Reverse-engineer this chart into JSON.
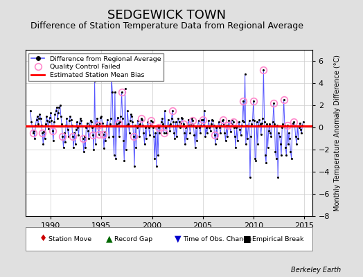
{
  "title": "SEDGEWICK TOWN",
  "subtitle": "Difference of Station Temperature Data from Regional Average",
  "ylabel": "Monthly Temperature Anomaly Difference (°C)",
  "credit": "Berkeley Earth",
  "xlim": [
    1987.5,
    2015.8
  ],
  "ylim": [
    -8,
    7
  ],
  "yticks": [
    -8,
    -6,
    -4,
    -2,
    0,
    2,
    4,
    6
  ],
  "xticks": [
    1990,
    1995,
    2000,
    2005,
    2010,
    2015
  ],
  "bias_line_y": 0.15,
  "background_color": "#e0e0e0",
  "plot_bg_color": "#ffffff",
  "line_color": "#5555ff",
  "dot_color": "#000000",
  "qc_color": "#ff88cc",
  "bias_color": "#ff0000",
  "title_fontsize": 13,
  "subtitle_fontsize": 9,
  "data_x": [
    1988.0,
    1988.083,
    1988.167,
    1988.25,
    1988.333,
    1988.417,
    1988.5,
    1988.583,
    1988.667,
    1988.75,
    1988.833,
    1988.917,
    1989.0,
    1989.083,
    1989.167,
    1989.25,
    1989.333,
    1989.417,
    1989.5,
    1989.583,
    1989.667,
    1989.75,
    1989.833,
    1989.917,
    1990.0,
    1990.083,
    1990.167,
    1990.25,
    1990.333,
    1990.417,
    1990.5,
    1990.583,
    1990.667,
    1990.75,
    1990.833,
    1990.917,
    1991.0,
    1991.083,
    1991.167,
    1991.25,
    1991.333,
    1991.417,
    1991.5,
    1991.583,
    1991.667,
    1991.75,
    1991.833,
    1991.917,
    1992.0,
    1992.083,
    1992.167,
    1992.25,
    1992.333,
    1992.417,
    1992.5,
    1992.583,
    1992.667,
    1992.75,
    1992.833,
    1992.917,
    1993.0,
    1993.083,
    1993.167,
    1993.25,
    1993.333,
    1993.417,
    1993.5,
    1993.583,
    1993.667,
    1993.75,
    1993.833,
    1993.917,
    1994.0,
    1994.083,
    1994.167,
    1994.25,
    1994.333,
    1994.417,
    1994.5,
    1994.583,
    1994.667,
    1994.75,
    1994.833,
    1994.917,
    1995.0,
    1995.083,
    1995.167,
    1995.25,
    1995.333,
    1995.417,
    1995.5,
    1995.583,
    1995.667,
    1995.75,
    1995.833,
    1995.917,
    1996.0,
    1996.083,
    1996.167,
    1996.25,
    1996.333,
    1996.417,
    1996.5,
    1996.583,
    1996.667,
    1996.75,
    1996.833,
    1996.917,
    1997.0,
    1997.083,
    1997.167,
    1997.25,
    1997.333,
    1997.417,
    1997.5,
    1997.583,
    1997.667,
    1997.75,
    1997.833,
    1997.917,
    1998.0,
    1998.083,
    1998.167,
    1998.25,
    1998.333,
    1998.417,
    1998.5,
    1998.583,
    1998.667,
    1998.75,
    1998.833,
    1998.917,
    1999.0,
    1999.083,
    1999.167,
    1999.25,
    1999.333,
    1999.417,
    1999.5,
    1999.583,
    1999.667,
    1999.75,
    1999.833,
    1999.917,
    2000.0,
    2000.083,
    2000.167,
    2000.25,
    2000.333,
    2000.417,
    2000.5,
    2000.583,
    2000.667,
    2000.75,
    2000.833,
    2000.917,
    2001.0,
    2001.083,
    2001.167,
    2001.25,
    2001.333,
    2001.417,
    2001.5,
    2001.583,
    2001.667,
    2001.75,
    2001.833,
    2001.917,
    2002.0,
    2002.083,
    2002.167,
    2002.25,
    2002.333,
    2002.417,
    2002.5,
    2002.583,
    2002.667,
    2002.75,
    2002.833,
    2002.917,
    2003.0,
    2003.083,
    2003.167,
    2003.25,
    2003.333,
    2003.417,
    2003.5,
    2003.583,
    2003.667,
    2003.75,
    2003.833,
    2003.917,
    2004.0,
    2004.083,
    2004.167,
    2004.25,
    2004.333,
    2004.417,
    2004.5,
    2004.583,
    2004.667,
    2004.75,
    2004.833,
    2004.917,
    2005.0,
    2005.083,
    2005.167,
    2005.25,
    2005.333,
    2005.417,
    2005.5,
    2005.583,
    2005.667,
    2005.75,
    2005.833,
    2005.917,
    2006.0,
    2006.083,
    2006.167,
    2006.25,
    2006.333,
    2006.417,
    2006.5,
    2006.583,
    2006.667,
    2006.75,
    2006.833,
    2006.917,
    2007.0,
    2007.083,
    2007.167,
    2007.25,
    2007.333,
    2007.417,
    2007.5,
    2007.583,
    2007.667,
    2007.75,
    2007.833,
    2007.917,
    2008.0,
    2008.083,
    2008.167,
    2008.25,
    2008.333,
    2008.417,
    2008.5,
    2008.583,
    2008.667,
    2008.75,
    2008.833,
    2008.917,
    2009.0,
    2009.083,
    2009.167,
    2009.25,
    2009.333,
    2009.417,
    2009.5,
    2009.583,
    2009.667,
    2009.75,
    2009.833,
    2009.917,
    2010.0,
    2010.083,
    2010.167,
    2010.25,
    2010.333,
    2010.417,
    2010.5,
    2010.583,
    2010.667,
    2010.75,
    2010.833,
    2010.917,
    2011.0,
    2011.083,
    2011.167,
    2011.25,
    2011.333,
    2011.417,
    2011.5,
    2011.583,
    2011.667,
    2011.75,
    2011.833,
    2011.917,
    2012.0,
    2012.083,
    2012.167,
    2012.25,
    2012.333,
    2012.417,
    2012.5,
    2012.583,
    2012.667,
    2012.75,
    2012.833,
    2012.917,
    2013.0,
    2013.083,
    2013.167,
    2013.25,
    2013.333,
    2013.417,
    2013.5,
    2013.583,
    2013.667,
    2013.75,
    2013.833,
    2013.917,
    2014.0,
    2014.083,
    2014.167,
    2014.25,
    2014.333,
    2014.417,
    2014.5,
    2014.583,
    2014.667,
    2014.75,
    2014.833,
    2014.917
  ],
  "data_y": [
    1.5,
    0.5,
    0.1,
    -0.5,
    -0.3,
    -1.0,
    0.2,
    0.7,
    1.0,
    0.3,
    0.8,
    1.2,
    0.8,
    0.2,
    -0.5,
    -1.5,
    -0.4,
    -1.0,
    0.3,
    1.0,
    0.6,
    -0.1,
    0.5,
    0.9,
    1.3,
    0.6,
    -0.3,
    -1.2,
    0.5,
    1.2,
    1.5,
    1.8,
    0.8,
    1.3,
    1.8,
    2.0,
    1.0,
    0.3,
    -0.8,
    -1.8,
    -0.5,
    -1.3,
    0.2,
    0.8,
    -0.2,
    -0.8,
    0.6,
    1.0,
    0.7,
    0.2,
    -0.8,
    -1.8,
    -0.5,
    -1.5,
    -0.2,
    0.5,
    0.0,
    -0.7,
    0.4,
    0.8,
    0.6,
    0.1,
    -1.0,
    -2.2,
    -0.8,
    -1.8,
    0.0,
    0.4,
    -0.3,
    -1.0,
    0.2,
    0.6,
    0.5,
    0.0,
    -0.7,
    -2.0,
    4.2,
    -1.5,
    0.3,
    0.8,
    0.2,
    -0.6,
    0.4,
    0.9,
    1.0,
    0.4,
    -0.6,
    -1.9,
    -0.4,
    -1.2,
    0.2,
    0.7,
    0.1,
    -0.9,
    0.3,
    0.8,
    4.5,
    3.2,
    -0.8,
    -2.5,
    3.2,
    -2.8,
    0.3,
    0.9,
    0.4,
    -0.8,
    0.5,
    1.0,
    3.2,
    0.8,
    -1.2,
    -3.0,
    3.5,
    -2.0,
    0.2,
    1.5,
    0.3,
    -0.5,
    0.6,
    1.2,
    1.0,
    0.5,
    -0.8,
    -3.5,
    0.2,
    -1.8,
    0.0,
    0.6,
    0.2,
    -0.8,
    0.3,
    0.8,
    0.7,
    0.2,
    -0.5,
    -1.5,
    0.0,
    -1.0,
    0.1,
    0.5,
    0.0,
    -0.7,
    0.2,
    0.6,
    0.5,
    0.0,
    -0.8,
    -2.8,
    -0.5,
    -3.5,
    0.2,
    -2.5,
    0.0,
    -0.5,
    0.2,
    0.5,
    0.8,
    0.3,
    -0.5,
    1.5,
    0.0,
    -0.5,
    0.1,
    0.7,
    0.2,
    -0.3,
    0.3,
    0.8,
    1.5,
    0.5,
    -0.5,
    -1.0,
    0.5,
    -0.8,
    0.2,
    0.8,
    0.5,
    0.0,
    0.4,
    0.9,
    0.8,
    0.3,
    -0.5,
    -1.5,
    0.0,
    -1.0,
    0.2,
    0.7,
    0.2,
    -0.5,
    0.3,
    0.8,
    0.6,
    0.2,
    -0.7,
    -1.8,
    0.0,
    -1.2,
    0.1,
    0.6,
    0.0,
    -0.5,
    0.2,
    0.7,
    0.7,
    0.2,
    1.5,
    -0.8,
    0.0,
    -0.5,
    0.1,
    0.6,
    0.0,
    -0.3,
    0.3,
    0.7,
    0.6,
    0.2,
    -0.7,
    -1.5,
    0.0,
    -1.0,
    0.1,
    0.5,
    0.0,
    -0.5,
    0.2,
    0.6,
    0.7,
    0.3,
    -0.5,
    -1.2,
    0.2,
    -0.8,
    0.2,
    0.6,
    0.1,
    -0.4,
    0.3,
    0.7,
    0.5,
    0.0,
    -0.8,
    -1.8,
    0.0,
    -1.2,
    0.1,
    0.5,
    -0.2,
    -0.7,
    0.2,
    0.6,
    2.4,
    0.5,
    4.8,
    -1.5,
    0.2,
    -1.0,
    0.1,
    0.6,
    -4.5,
    -0.8,
    0.3,
    0.7,
    2.4,
    0.6,
    -2.8,
    -3.0,
    0.5,
    -1.5,
    0.2,
    0.7,
    0.3,
    -0.6,
    0.4,
    0.8,
    5.2,
    0.5,
    -2.5,
    -3.2,
    0.3,
    -1.8,
    -0.3,
    0.3,
    -0.5,
    -0.8,
    0.1,
    0.5,
    2.2,
    0.3,
    -2.2,
    -2.8,
    0.2,
    -4.5,
    -0.5,
    -0.8,
    -1.5,
    -2.5,
    0.0,
    0.3,
    2.5,
    0.2,
    -1.8,
    -2.5,
    0.2,
    -1.5,
    -0.5,
    -1.0,
    -2.2,
    -2.8,
    0.1,
    0.4,
    0.5,
    0.1,
    -0.8,
    -1.5,
    0.1,
    -1.0,
    0.0,
    0.4,
    -0.2,
    -0.5,
    0.2,
    0.5
  ],
  "qc_failed_indices": [
    3,
    14,
    26,
    38,
    50,
    62,
    74,
    80,
    81,
    86,
    96,
    104,
    108,
    122,
    131,
    143,
    152,
    158,
    168,
    181,
    192,
    204,
    218,
    228,
    234,
    240,
    252,
    264,
    276,
    288,
    300,
    304,
    312
  ],
  "legend1_items": [
    {
      "label": "Difference from Regional Average",
      "type": "line_dot"
    },
    {
      "label": "Quality Control Failed",
      "type": "qc_circle"
    },
    {
      "label": "Estimated Station Mean Bias",
      "type": "red_line"
    }
  ],
  "legend2_items": [
    {
      "label": "Station Move",
      "symbol": "♦",
      "color": "#cc0000"
    },
    {
      "label": "Record Gap",
      "symbol": "▲",
      "color": "#006600"
    },
    {
      "label": "Time of Obs. Change",
      "symbol": "▼",
      "color": "#0000cc"
    },
    {
      "label": "Empirical Break",
      "symbol": "■",
      "color": "#000000"
    }
  ]
}
